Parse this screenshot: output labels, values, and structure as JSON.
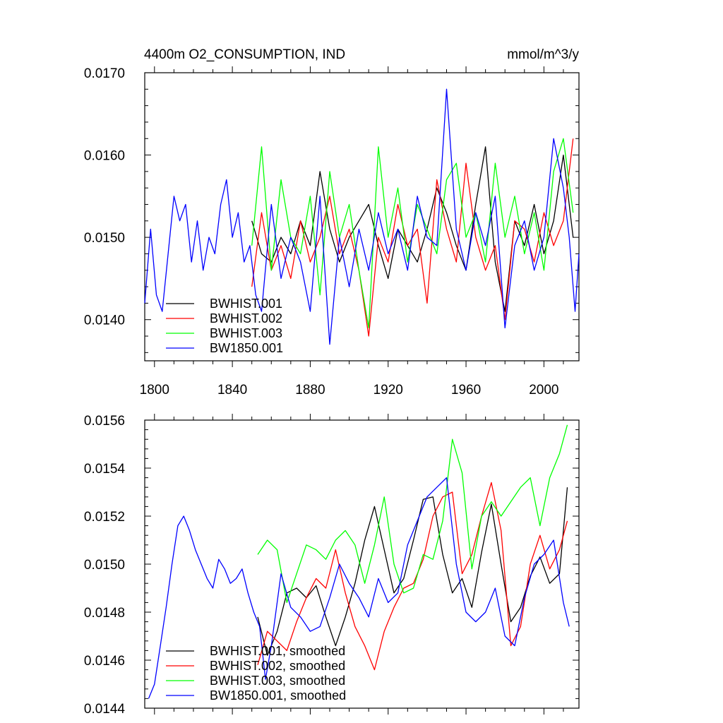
{
  "chart_data": [
    {
      "type": "line",
      "title_left": "4400m O2_CONSUMPTION, IND",
      "title_right": "mmol/m^3/y",
      "xlabel": "",
      "ylabel": "",
      "xlim": [
        1795,
        2018
      ],
      "ylim": [
        0.0135,
        0.017
      ],
      "yticks": [
        0.014,
        0.015,
        0.016,
        0.017
      ],
      "ytick_labels": [
        "0.0140",
        "0.0150",
        "0.0160",
        "0.0170"
      ],
      "xticks": [
        1800,
        1840,
        1880,
        1920,
        1960,
        2000
      ],
      "xtick_labels": [
        "1800",
        "1840",
        "1880",
        "1920",
        "1960",
        "2000"
      ],
      "legend": "bottom-left",
      "series": [
        {
          "name": "BWHIST.001",
          "color": "#000000",
          "x": [
            1850,
            1855,
            1860,
            1865,
            1870,
            1875,
            1880,
            1885,
            1890,
            1895,
            1900,
            1905,
            1910,
            1915,
            1920,
            1925,
            1930,
            1935,
            1940,
            1945,
            1950,
            1955,
            1960,
            1965,
            1970,
            1975,
            1980,
            1985,
            1990,
            1995,
            2000,
            2005,
            2010,
            2015
          ],
          "values": [
            0.0152,
            0.0148,
            0.0147,
            0.015,
            0.0148,
            0.0152,
            0.0149,
            0.0158,
            0.0151,
            0.0147,
            0.015,
            0.0152,
            0.0154,
            0.0149,
            0.0145,
            0.0151,
            0.0149,
            0.0147,
            0.0151,
            0.0156,
            0.0153,
            0.0149,
            0.0146,
            0.0154,
            0.0161,
            0.0147,
            0.0141,
            0.0152,
            0.0149,
            0.0154,
            0.0148,
            0.0152,
            0.016,
            0.015
          ]
        },
        {
          "name": "BWHIST.002",
          "color": "#ff0000",
          "x": [
            1850,
            1855,
            1860,
            1865,
            1870,
            1875,
            1880,
            1885,
            1890,
            1895,
            1900,
            1905,
            1910,
            1915,
            1920,
            1925,
            1930,
            1935,
            1940,
            1945,
            1950,
            1955,
            1960,
            1965,
            1970,
            1975,
            1980,
            1985,
            1990,
            1995,
            2000,
            2005,
            2010,
            2015
          ],
          "values": [
            0.0144,
            0.0153,
            0.0146,
            0.0149,
            0.0145,
            0.0152,
            0.0147,
            0.015,
            0.0155,
            0.0148,
            0.0151,
            0.0146,
            0.0138,
            0.015,
            0.0147,
            0.0154,
            0.0149,
            0.0151,
            0.0142,
            0.0157,
            0.0151,
            0.0147,
            0.0159,
            0.015,
            0.0146,
            0.0149,
            0.014,
            0.0152,
            0.0151,
            0.0147,
            0.0153,
            0.0149,
            0.0152,
            0.0162
          ]
        },
        {
          "name": "BWHIST.003",
          "color": "#00ff00",
          "x": [
            1850,
            1855,
            1860,
            1865,
            1870,
            1875,
            1880,
            1885,
            1890,
            1895,
            1900,
            1905,
            1910,
            1915,
            1920,
            1925,
            1930,
            1935,
            1940,
            1945,
            1950,
            1955,
            1960,
            1965,
            1970,
            1975,
            1980,
            1985,
            1990,
            1995,
            2000,
            2005,
            2010,
            2015
          ],
          "values": [
            0.0149,
            0.0161,
            0.0146,
            0.0157,
            0.015,
            0.0148,
            0.0155,
            0.0143,
            0.0158,
            0.015,
            0.0154,
            0.0146,
            0.0139,
            0.0161,
            0.015,
            0.0156,
            0.0147,
            0.0154,
            0.0151,
            0.0148,
            0.0157,
            0.0159,
            0.015,
            0.0153,
            0.0147,
            0.0159,
            0.015,
            0.0155,
            0.0148,
            0.0153,
            0.0146,
            0.0158,
            0.0162,
            0.0153
          ]
        },
        {
          "name": "BW1850.001",
          "color": "#0000ff",
          "x": [
            1795,
            1798,
            1801,
            1804,
            1807,
            1810,
            1813,
            1816,
            1819,
            1822,
            1825,
            1828,
            1831,
            1834,
            1837,
            1840,
            1843,
            1846,
            1849,
            1852,
            1855,
            1860,
            1865,
            1870,
            1875,
            1880,
            1885,
            1890,
            1895,
            1900,
            1905,
            1910,
            1915,
            1920,
            1925,
            1930,
            1935,
            1940,
            1945,
            1950,
            1955,
            1960,
            1965,
            1970,
            1975,
            1980,
            1985,
            1990,
            1995,
            2000,
            2005,
            2010,
            2013,
            2016,
            2018
          ],
          "values": [
            0.0142,
            0.0151,
            0.0143,
            0.0141,
            0.0148,
            0.0155,
            0.0152,
            0.0154,
            0.0147,
            0.0152,
            0.0146,
            0.015,
            0.0148,
            0.0154,
            0.0157,
            0.015,
            0.0153,
            0.0147,
            0.0149,
            0.0143,
            0.0141,
            0.0154,
            0.0145,
            0.015,
            0.0147,
            0.0141,
            0.0155,
            0.0137,
            0.015,
            0.0144,
            0.0151,
            0.0146,
            0.0153,
            0.0148,
            0.0151,
            0.0146,
            0.0155,
            0.015,
            0.0149,
            0.0168,
            0.0151,
            0.0146,
            0.0153,
            0.0149,
            0.0155,
            0.0139,
            0.0149,
            0.0152,
            0.0146,
            0.015,
            0.0162,
            0.0156,
            0.015,
            0.0141,
            0.0148
          ]
        }
      ]
    },
    {
      "type": "line",
      "title_left": "",
      "title_right": "",
      "xlabel": "",
      "ylabel": "",
      "xlim": [
        1795,
        2018
      ],
      "ylim": [
        0.0144,
        0.0156
      ],
      "yticks": [
        0.0144,
        0.0146,
        0.0148,
        0.015,
        0.0152,
        0.0154,
        0.0156
      ],
      "ytick_labels": [
        "0.0144",
        "0.0146",
        "0.0148",
        "0.0150",
        "0.0152",
        "0.0154",
        "0.0156"
      ],
      "xticks": [
        1800,
        1840,
        1880,
        1920,
        1960,
        2000
      ],
      "xtick_labels": [],
      "legend": "bottom-left",
      "series": [
        {
          "name": "BWHIST.001, smoothed",
          "color": "#000000",
          "x": [
            1853,
            1858,
            1863,
            1868,
            1873,
            1878,
            1883,
            1888,
            1893,
            1898,
            1903,
            1908,
            1913,
            1918,
            1923,
            1928,
            1933,
            1938,
            1943,
            1948,
            1953,
            1958,
            1963,
            1968,
            1973,
            1978,
            1983,
            1988,
            1993,
            1998,
            2003,
            2008,
            2012
          ],
          "values": [
            0.01478,
            0.01462,
            0.01472,
            0.01488,
            0.0149,
            0.01486,
            0.01491,
            0.01478,
            0.01466,
            0.01478,
            0.01492,
            0.0151,
            0.01524,
            0.01506,
            0.01488,
            0.01494,
            0.0151,
            0.01527,
            0.01528,
            0.01504,
            0.01488,
            0.01494,
            0.01482,
            0.01505,
            0.01525,
            0.015,
            0.01476,
            0.01482,
            0.01495,
            0.01503,
            0.01492,
            0.01496,
            0.01532
          ]
        },
        {
          "name": "BWHIST.002, smoothed",
          "color": "#ff0000",
          "x": [
            1853,
            1858,
            1863,
            1868,
            1873,
            1878,
            1883,
            1888,
            1893,
            1898,
            1903,
            1908,
            1913,
            1918,
            1923,
            1928,
            1933,
            1938,
            1943,
            1948,
            1953,
            1958,
            1963,
            1968,
            1973,
            1978,
            1983,
            1988,
            1993,
            1998,
            2003,
            2008,
            2012
          ],
          "values": [
            0.01458,
            0.01472,
            0.01468,
            0.01464,
            0.01476,
            0.01486,
            0.01494,
            0.0149,
            0.01506,
            0.01488,
            0.01474,
            0.01466,
            0.01456,
            0.01472,
            0.01482,
            0.0149,
            0.01492,
            0.01502,
            0.0152,
            0.01528,
            0.0153,
            0.01496,
            0.01504,
            0.0152,
            0.01534,
            0.01514,
            0.01466,
            0.01474,
            0.015,
            0.01512,
            0.01498,
            0.01506,
            0.01518
          ]
        },
        {
          "name": "BWHIST.003, smoothed",
          "color": "#00ff00",
          "x": [
            1853,
            1858,
            1863,
            1868,
            1873,
            1878,
            1883,
            1888,
            1893,
            1898,
            1903,
            1908,
            1913,
            1918,
            1923,
            1928,
            1933,
            1938,
            1943,
            1948,
            1953,
            1958,
            1963,
            1968,
            1973,
            1978,
            1983,
            1988,
            1993,
            1998,
            2003,
            2008,
            2012
          ],
          "values": [
            0.01504,
            0.0151,
            0.01506,
            0.01484,
            0.01496,
            0.01508,
            0.01506,
            0.01502,
            0.0151,
            0.01514,
            0.01508,
            0.01492,
            0.01508,
            0.01528,
            0.015,
            0.01488,
            0.0149,
            0.01504,
            0.01502,
            0.01518,
            0.01552,
            0.01538,
            0.01498,
            0.0152,
            0.01526,
            0.0152,
            0.01526,
            0.01532,
            0.01536,
            0.01516,
            0.01536,
            0.01546,
            0.01558
          ]
        },
        {
          "name": "BW1850.001, smoothed",
          "color": "#0000ff",
          "x": [
            1797,
            1800,
            1803,
            1806,
            1809,
            1812,
            1815,
            1818,
            1821,
            1824,
            1827,
            1830,
            1833,
            1836,
            1839,
            1842,
            1845,
            1848,
            1851,
            1854,
            1857,
            1860,
            1865,
            1870,
            1875,
            1880,
            1885,
            1890,
            1895,
            1900,
            1905,
            1910,
            1915,
            1920,
            1925,
            1930,
            1935,
            1940,
            1945,
            1950,
            1955,
            1960,
            1965,
            1970,
            1975,
            1980,
            1985,
            1990,
            1995,
            2000,
            2005,
            2010,
            2013
          ],
          "values": [
            0.01444,
            0.0145,
            0.01466,
            0.01482,
            0.015,
            0.01516,
            0.0152,
            0.01514,
            0.01506,
            0.015,
            0.01494,
            0.0149,
            0.01502,
            0.01498,
            0.01492,
            0.01494,
            0.01498,
            0.01488,
            0.0148,
            0.01474,
            0.01452,
            0.01466,
            0.01496,
            0.01482,
            0.01478,
            0.01472,
            0.01474,
            0.01486,
            0.015,
            0.01492,
            0.01486,
            0.01478,
            0.01494,
            0.01484,
            0.01488,
            0.01508,
            0.01518,
            0.01528,
            0.01532,
            0.01536,
            0.015,
            0.0148,
            0.01476,
            0.0148,
            0.0149,
            0.0147,
            0.01466,
            0.01486,
            0.015,
            0.01504,
            0.0151,
            0.01484,
            0.01474
          ]
        }
      ]
    }
  ]
}
